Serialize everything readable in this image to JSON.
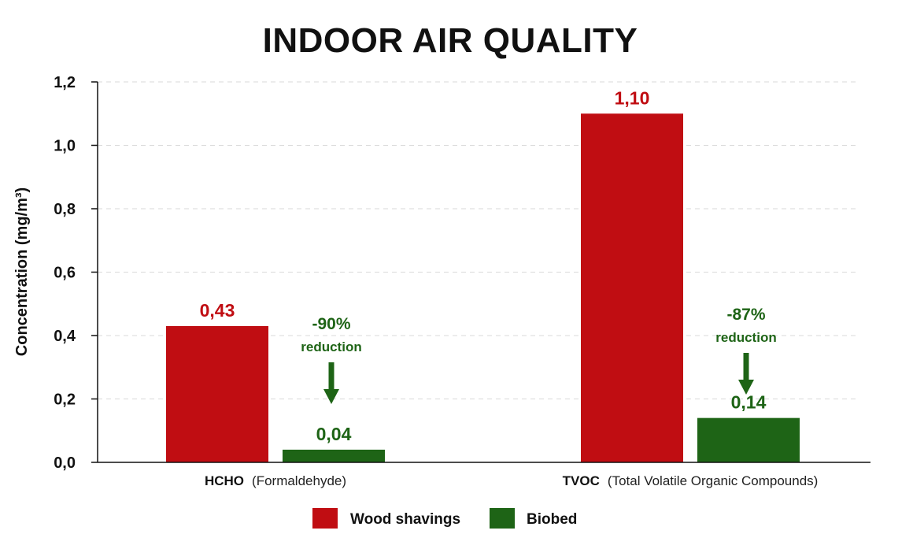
{
  "chart_data": {
    "type": "bar",
    "title": "INDOOR AIR QUALITY",
    "ylabel": "Concentration (mg/m³)",
    "xlabel": "",
    "ylim": [
      0,
      1.2
    ],
    "yticks": [
      0,
      0.2,
      0.4,
      0.6,
      0.8,
      1.0,
      1.2
    ],
    "ytick_labels": [
      "0,0",
      "0,2",
      "0,4",
      "0,6",
      "0,8",
      "1,0",
      "1,2"
    ],
    "grid": true,
    "categories": [
      {
        "main": "HCHO",
        "sub": "(Formaldehyde)"
      },
      {
        "main": "TVOC",
        "sub": "(Total Volatile Organic Compounds)"
      }
    ],
    "series": [
      {
        "name": "Wood shavings",
        "color": "#c00d12",
        "values": [
          0.43,
          1.1
        ],
        "labels": [
          "0,43",
          "1,10"
        ]
      },
      {
        "name": "Biobed",
        "color": "#1e6416",
        "values": [
          0.04,
          0.14
        ],
        "labels": [
          "0,04",
          "0,14"
        ]
      }
    ],
    "annotations": [
      {
        "category": 0,
        "percent": "-90%",
        "text": "reduction",
        "color": "#1e6416"
      },
      {
        "category": 1,
        "percent": "-87%",
        "text": "reduction",
        "color": "#1e6416"
      }
    ],
    "legend_position": "bottom-center"
  }
}
